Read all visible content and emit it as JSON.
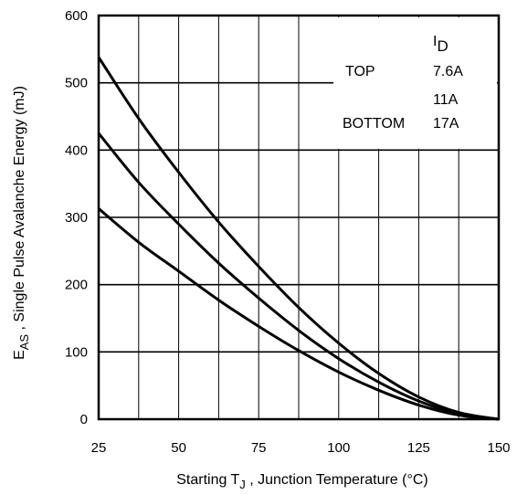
{
  "chart_data": {
    "type": "line",
    "xlabel": {
      "main": "Starting T",
      "sub": "J",
      "rest": " , Junction Temperature (°C)"
    },
    "ylabel": {
      "main": "E",
      "sub": "AS",
      "rest": " , Single Pulse Avalanche Energy (mJ)"
    },
    "xlim": [
      25,
      150
    ],
    "ylim": [
      0,
      600
    ],
    "xticks": [
      25,
      50,
      75,
      100,
      125,
      150
    ],
    "yticks": [
      0,
      100,
      200,
      300,
      400,
      500,
      600
    ],
    "grid": true,
    "legend": {
      "position": "top-right",
      "header_main": "I",
      "header_sub": "D",
      "rows": [
        {
          "tag": "TOP",
          "label": "7.6A"
        },
        {
          "tag": "",
          "label": "11A"
        },
        {
          "tag": "BOTTOM",
          "label": "17A"
        }
      ]
    },
    "series": [
      {
        "x": [
          25,
          37.5,
          50,
          62.5,
          75,
          87.5,
          100,
          112.5,
          125,
          137.5,
          150
        ],
        "values": [
          538,
          447,
          367,
          293,
          227,
          166,
          113,
          68,
          33,
          10,
          0
        ]
      },
      {
        "x": [
          25,
          37.5,
          50,
          62.5,
          75,
          87.5,
          100,
          112.5,
          125,
          137.5,
          150
        ],
        "values": [
          425,
          352,
          290,
          232,
          180,
          132,
          90,
          55,
          27,
          8,
          0
        ]
      },
      {
        "x": [
          25,
          37.5,
          50,
          62.5,
          75,
          87.5,
          100,
          112.5,
          125,
          137.5,
          150
        ],
        "values": [
          313,
          263,
          220,
          177,
          138,
          102,
          70,
          43,
          21,
          6,
          0
        ]
      }
    ]
  }
}
